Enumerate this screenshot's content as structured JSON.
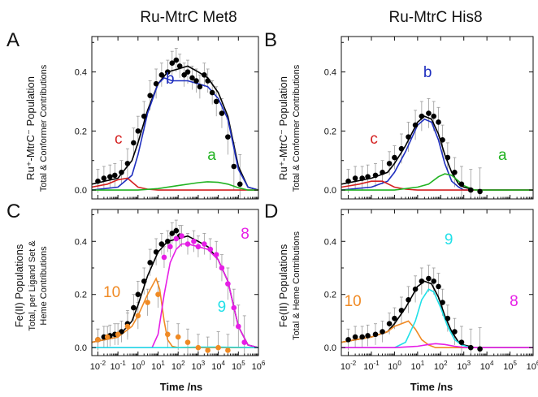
{
  "figure": {
    "col_titles": [
      "Ru-MtrC Met8",
      "Ru-MtrC His8"
    ],
    "ylabel_top": {
      "main": "Ru⁺-MtrC⁻ Population",
      "sub": "Total & Conformer Contributions"
    },
    "ylabel_bottom_left": {
      "main": "Fe(II) Populations",
      "sub1": "Total, per Ligand Set &",
      "sub2": "Heme Contributions"
    },
    "ylabel_bottom_right": {
      "main": "Fe(II) Populations",
      "sub": "Total & Heme Contributions"
    },
    "xlabel": "Time /ns",
    "colors": {
      "black": "#000000",
      "blue": "#1f2fbf",
      "red": "#d42020",
      "green": "#22b322",
      "orange": "#f08a24",
      "magenta": "#e61ee6",
      "cyan": "#21e0e8",
      "error": "#9a9a9a"
    }
  },
  "chart_data": [
    {
      "panel": "A",
      "type": "scatter",
      "title": "Ru-MtrC Met8",
      "xlabel": "",
      "ylabel": "Ru⁺-MtrC⁻ Population / Total & Conformer Contributions",
      "xscale": "log",
      "xlim": [
        0.005,
        1000000
      ],
      "ylim": [
        -0.03,
        0.52
      ],
      "xticks": [
        "10-2",
        "10-1",
        "100",
        "101",
        "102",
        "103",
        "104",
        "105",
        "106"
      ],
      "yticks": [
        "0.0",
        "0.2",
        "0.4"
      ],
      "annotations": [
        {
          "text": "c",
          "color": "#d42020"
        },
        {
          "text": "b",
          "color": "#1f2fbf"
        },
        {
          "text": "a",
          "color": "#22b322"
        }
      ],
      "points": {
        "x": [
          0.01,
          0.02,
          0.04,
          0.07,
          0.15,
          0.3,
          0.6,
          1,
          2,
          4,
          8,
          15,
          30,
          50,
          80,
          120,
          200,
          300,
          500,
          800,
          1200,
          2000,
          3000,
          5000,
          8000,
          15000,
          30000,
          60000,
          120000
        ],
        "y": [
          0.03,
          0.04,
          0.045,
          0.05,
          0.06,
          0.09,
          0.16,
          0.2,
          0.25,
          0.32,
          0.36,
          0.39,
          0.4,
          0.43,
          0.44,
          0.42,
          0.39,
          0.4,
          0.38,
          0.37,
          0.35,
          0.39,
          0.37,
          0.33,
          0.3,
          0.26,
          0.18,
          0.08,
          0.02
        ],
        "err": [
          0.04,
          0.04,
          0.04,
          0.04,
          0.04,
          0.05,
          0.05,
          0.05,
          0.05,
          0.05,
          0.05,
          0.04,
          0.04,
          0.04,
          0.04,
          0.04,
          0.04,
          0.04,
          0.04,
          0.04,
          0.04,
          0.04,
          0.04,
          0.04,
          0.05,
          0.05,
          0.06,
          0.08,
          0.1
        ]
      },
      "series": [
        {
          "name": "",
          "color": "#000000",
          "x": [
            0.005,
            0.1,
            0.5,
            1,
            3,
            10,
            30,
            100,
            300,
            1000,
            3000,
            10000,
            30000,
            100000,
            300000,
            1000000
          ],
          "y": [
            0.02,
            0.04,
            0.1,
            0.16,
            0.27,
            0.36,
            0.4,
            0.41,
            0.42,
            0.4,
            0.38,
            0.33,
            0.25,
            0.08,
            0.01,
            0.0
          ]
        },
        {
          "name": "b",
          "color": "#1f2fbf",
          "x": [
            0.005,
            0.1,
            0.5,
            1,
            3,
            10,
            20,
            50,
            100,
            300,
            1000,
            3000,
            10000,
            30000,
            100000,
            300000,
            1000000
          ],
          "y": [
            0.0,
            0.01,
            0.05,
            0.12,
            0.26,
            0.36,
            0.38,
            0.37,
            0.37,
            0.37,
            0.36,
            0.35,
            0.31,
            0.24,
            0.07,
            0.01,
            0.0
          ]
        },
        {
          "name": "c",
          "color": "#d42020",
          "x": [
            0.005,
            0.03,
            0.1,
            0.3,
            1,
            3,
            10,
            1000000
          ],
          "y": [
            0.01,
            0.02,
            0.035,
            0.04,
            0.01,
            0.003,
            0.0,
            0.0
          ]
        },
        {
          "name": "a",
          "color": "#22b322",
          "x": [
            0.005,
            1,
            10,
            100,
            1000,
            3000,
            10000,
            30000,
            100000,
            300000,
            1000000
          ],
          "y": [
            0.0,
            0.0,
            0.005,
            0.015,
            0.025,
            0.028,
            0.026,
            0.02,
            0.008,
            0.0,
            0.0
          ]
        }
      ]
    },
    {
      "panel": "B",
      "type": "scatter",
      "title": "Ru-MtrC His8",
      "xlabel": "",
      "ylabel": "",
      "xscale": "log",
      "xlim": [
        0.005,
        1000000
      ],
      "ylim": [
        -0.03,
        0.52
      ],
      "xticks": [
        "10-2",
        "10-1",
        "100",
        "101",
        "102",
        "103",
        "104",
        "105",
        "106"
      ],
      "yticks": [
        "0.0",
        "0.2",
        "0.4"
      ],
      "annotations": [
        {
          "text": "c",
          "color": "#d42020"
        },
        {
          "text": "b",
          "color": "#1f2fbf"
        },
        {
          "text": "a",
          "color": "#22b322"
        }
      ],
      "points": {
        "x": [
          0.01,
          0.02,
          0.04,
          0.07,
          0.15,
          0.3,
          0.6,
          1,
          2,
          4,
          8,
          15,
          30,
          50,
          80,
          120,
          200,
          400,
          800,
          2000,
          5000
        ],
        "y": [
          0.03,
          0.04,
          0.04,
          0.045,
          0.05,
          0.06,
          0.09,
          0.11,
          0.14,
          0.18,
          0.22,
          0.25,
          0.26,
          0.25,
          0.23,
          0.17,
          0.11,
          0.06,
          0.02,
          0.0,
          -0.005
        ],
        "err": [
          0.04,
          0.04,
          0.04,
          0.04,
          0.04,
          0.04,
          0.04,
          0.04,
          0.05,
          0.05,
          0.05,
          0.05,
          0.05,
          0.05,
          0.05,
          0.05,
          0.05,
          0.05,
          0.06,
          0.07,
          0.08
        ]
      },
      "series": [
        {
          "name": "",
          "color": "#000000",
          "x": [
            0.005,
            0.1,
            0.5,
            1,
            3,
            10,
            20,
            40,
            80,
            150,
            300,
            600,
            1000,
            3000,
            1000000
          ],
          "y": [
            0.02,
            0.04,
            0.06,
            0.09,
            0.15,
            0.23,
            0.25,
            0.24,
            0.19,
            0.12,
            0.06,
            0.02,
            0.01,
            0.0,
            0.0
          ]
        },
        {
          "name": "b",
          "color": "#1f2fbf",
          "x": [
            0.005,
            0.1,
            0.5,
            1,
            3,
            10,
            20,
            40,
            80,
            150,
            300,
            600,
            1000,
            3000,
            1000000
          ],
          "y": [
            0.0,
            0.01,
            0.03,
            0.06,
            0.13,
            0.22,
            0.24,
            0.23,
            0.17,
            0.09,
            0.03,
            0.01,
            0.0,
            0.0,
            0.0
          ]
        },
        {
          "name": "c",
          "color": "#d42020",
          "x": [
            0.005,
            0.03,
            0.1,
            0.3,
            1,
            3,
            10,
            1000000
          ],
          "y": [
            0.01,
            0.02,
            0.03,
            0.03,
            0.01,
            0.003,
            0.0,
            0.0
          ]
        },
        {
          "name": "a",
          "color": "#22b322",
          "x": [
            0.005,
            1,
            10,
            30,
            80,
            150,
            300,
            600,
            1000,
            3000,
            1000000
          ],
          "y": [
            0.0,
            0.0,
            0.01,
            0.02,
            0.045,
            0.055,
            0.05,
            0.03,
            0.015,
            0.0,
            0.0
          ]
        }
      ]
    },
    {
      "panel": "C",
      "type": "scatter",
      "title": "",
      "xlabel": "Time /ns",
      "ylabel": "Fe(II) Populations / Total, per Ligand Set & Heme Contributions",
      "xscale": "log",
      "xlim": [
        0.005,
        1000000
      ],
      "ylim": [
        -0.03,
        0.52
      ],
      "xticks": [
        "10-2",
        "10-1",
        "100",
        "101",
        "102",
        "103",
        "104",
        "105",
        "106"
      ],
      "yticks": [
        "0.0",
        "0.2",
        "0.4"
      ],
      "annotations": [
        {
          "text": "10",
          "color": "#f08a24"
        },
        {
          "text": "8",
          "color": "#e61ee6"
        },
        {
          "text": "9",
          "color": "#21e0e8"
        }
      ],
      "points_black": {
        "x": [
          0.01,
          0.02,
          0.04,
          0.07,
          0.15,
          0.3,
          0.6,
          1,
          2,
          4,
          8,
          15,
          30,
          50,
          80,
          120
        ],
        "y": [
          0.03,
          0.04,
          0.045,
          0.05,
          0.06,
          0.09,
          0.15,
          0.2,
          0.25,
          0.32,
          0.36,
          0.39,
          0.4,
          0.43,
          0.44,
          0.42
        ],
        "err": [
          0.04,
          0.04,
          0.04,
          0.04,
          0.04,
          0.05,
          0.05,
          0.05,
          0.05,
          0.05,
          0.05,
          0.04,
          0.04,
          0.04,
          0.04,
          0.04
        ]
      },
      "points_orange": {
        "x": [
          0.01,
          0.03,
          0.1,
          0.3,
          1,
          3,
          10,
          30,
          100,
          300,
          1000,
          3000,
          10000,
          30000
        ],
        "y": [
          0.03,
          0.04,
          0.05,
          0.08,
          0.12,
          0.17,
          0.2,
          0.05,
          0.04,
          0.02,
          0.0,
          -0.01,
          0.0,
          -0.01
        ],
        "err": [
          0.04,
          0.04,
          0.04,
          0.05,
          0.05,
          0.05,
          0.05,
          0.05,
          0.05,
          0.05,
          0.05,
          0.05,
          0.06,
          0.06
        ]
      },
      "points_magenta": {
        "x": [
          20,
          40,
          80,
          150,
          300,
          600,
          1000,
          2000,
          4000,
          8000,
          15000,
          30000,
          60000,
          100000,
          200000
        ],
        "y": [
          0.34,
          0.38,
          0.41,
          0.42,
          0.39,
          0.4,
          0.38,
          0.39,
          0.37,
          0.35,
          0.3,
          0.24,
          0.15,
          0.08,
          0.02
        ],
        "err": [
          0.04,
          0.04,
          0.04,
          0.04,
          0.04,
          0.04,
          0.04,
          0.04,
          0.04,
          0.05,
          0.05,
          0.06,
          0.07,
          0.08,
          0.1
        ]
      },
      "series": [
        {
          "name": "",
          "color": "#000000",
          "x": [
            0.005,
            0.1,
            0.5,
            1,
            3,
            10,
            30,
            100,
            300,
            1000,
            3000,
            10000,
            30000,
            100000,
            300000,
            1000000
          ],
          "y": [
            0.02,
            0.04,
            0.1,
            0.16,
            0.27,
            0.36,
            0.4,
            0.41,
            0.42,
            0.4,
            0.38,
            0.33,
            0.25,
            0.08,
            0.01,
            0.0
          ]
        },
        {
          "name": "10",
          "color": "#f08a24",
          "x": [
            0.005,
            0.1,
            0.5,
            1,
            3,
            8,
            12,
            20,
            30,
            50,
            100,
            1000000
          ],
          "y": [
            0.02,
            0.04,
            0.08,
            0.12,
            0.2,
            0.26,
            0.22,
            0.1,
            0.03,
            0.005,
            0.0,
            0.0
          ]
        },
        {
          "name": "8",
          "color": "#e61ee6",
          "x": [
            0.005,
            5,
            10,
            20,
            40,
            80,
            150,
            300,
            1000,
            3000,
            10000,
            30000,
            100000,
            300000,
            1000000
          ],
          "y": [
            0.0,
            0.0,
            0.05,
            0.2,
            0.32,
            0.37,
            0.39,
            0.39,
            0.38,
            0.37,
            0.33,
            0.25,
            0.08,
            0.01,
            0.0
          ]
        },
        {
          "name": "9",
          "color": "#21e0e8",
          "x": [
            0.005,
            100,
            1000,
            10000,
            1000000
          ],
          "y": [
            0.0,
            0.0,
            0.002,
            0.002,
            0.0
          ]
        }
      ]
    },
    {
      "panel": "D",
      "type": "scatter",
      "title": "",
      "xlabel": "Time /ns",
      "ylabel": "Fe(II) Populations / Total & Heme Contributions",
      "xscale": "log",
      "xlim": [
        0.005,
        1000000
      ],
      "ylim": [
        -0.03,
        0.52
      ],
      "xticks": [
        "10-2",
        "10-1",
        "100",
        "101",
        "102",
        "103",
        "104",
        "105",
        "106"
      ],
      "yticks": [
        "0.0",
        "0.2",
        "0.4"
      ],
      "annotations": [
        {
          "text": "10",
          "color": "#f08a24"
        },
        {
          "text": "9",
          "color": "#21e0e8"
        },
        {
          "text": "8",
          "color": "#e61ee6"
        }
      ],
      "points": {
        "x": [
          0.01,
          0.02,
          0.04,
          0.07,
          0.15,
          0.3,
          0.6,
          1,
          2,
          4,
          8,
          15,
          30,
          50,
          80,
          120,
          200,
          400,
          800,
          2000,
          5000
        ],
        "y": [
          0.03,
          0.04,
          0.04,
          0.045,
          0.05,
          0.06,
          0.09,
          0.11,
          0.14,
          0.18,
          0.22,
          0.25,
          0.26,
          0.25,
          0.23,
          0.17,
          0.11,
          0.06,
          0.02,
          0.0,
          -0.005
        ],
        "err": [
          0.04,
          0.04,
          0.04,
          0.04,
          0.04,
          0.04,
          0.04,
          0.04,
          0.05,
          0.05,
          0.05,
          0.05,
          0.05,
          0.05,
          0.05,
          0.05,
          0.05,
          0.05,
          0.06,
          0.07,
          0.08
        ]
      },
      "series": [
        {
          "name": "",
          "color": "#000000",
          "x": [
            0.005,
            0.1,
            0.5,
            1,
            3,
            10,
            20,
            40,
            80,
            150,
            300,
            600,
            1000,
            3000,
            1000000
          ],
          "y": [
            0.02,
            0.04,
            0.06,
            0.09,
            0.15,
            0.23,
            0.25,
            0.24,
            0.19,
            0.12,
            0.06,
            0.02,
            0.01,
            0.0,
            0.0
          ]
        },
        {
          "name": "10",
          "color": "#f08a24",
          "x": [
            0.005,
            0.1,
            0.5,
            1,
            2,
            4,
            8,
            15,
            30,
            60,
            1000000
          ],
          "y": [
            0.02,
            0.04,
            0.06,
            0.08,
            0.09,
            0.1,
            0.07,
            0.03,
            0.01,
            0.0,
            0.0
          ]
        },
        {
          "name": "9",
          "color": "#21e0e8",
          "x": [
            0.005,
            1,
            3,
            8,
            15,
            30,
            50,
            100,
            200,
            400,
            800,
            2000,
            1000000
          ],
          "y": [
            0.0,
            0.0,
            0.02,
            0.1,
            0.18,
            0.22,
            0.21,
            0.15,
            0.08,
            0.03,
            0.01,
            0.0,
            0.0
          ]
        },
        {
          "name": "8",
          "color": "#e61ee6",
          "x": [
            0.005,
            1,
            10,
            30,
            60,
            150,
            400,
            1000,
            3000,
            1000000
          ],
          "y": [
            0.0,
            0.0,
            0.005,
            0.012,
            0.015,
            0.012,
            0.005,
            0.001,
            0.0,
            0.0
          ]
        }
      ]
    }
  ]
}
